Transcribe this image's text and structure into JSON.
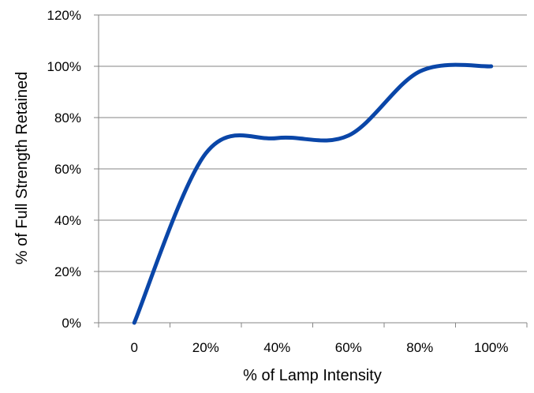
{
  "chart_data": {
    "type": "line",
    "title": "",
    "xlabel": "% of Lamp Intensity",
    "ylabel": "% of Full Strength Retained",
    "x_tick_labels": [
      "0",
      "20%",
      "40%",
      "60%",
      "80%",
      "100%"
    ],
    "y_tick_labels": [
      "0%",
      "20%",
      "40%",
      "60%",
      "80%",
      "100%",
      "120%"
    ],
    "xlim": [
      -0.1,
      1.1
    ],
    "ylim": [
      0,
      1.2
    ],
    "grid": "horizontal",
    "legend": "none",
    "series": [
      {
        "color": "#0a46a8",
        "x": [
          0,
          0.2,
          0.4,
          0.6,
          0.8,
          1.0
        ],
        "y": [
          0,
          0.66,
          0.72,
          0.73,
          0.98,
          1.0
        ]
      }
    ]
  }
}
